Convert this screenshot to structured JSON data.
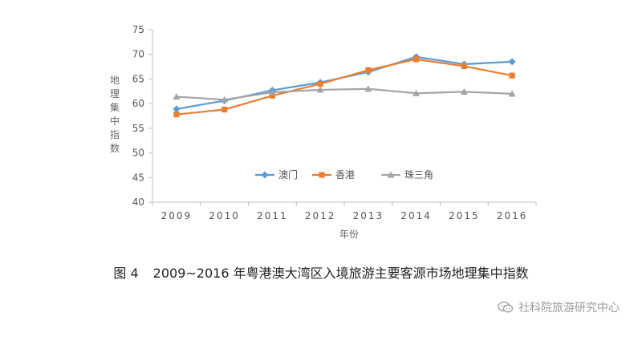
{
  "chart_data": {
    "type": "line",
    "title": "",
    "xlabel": "年份",
    "ylabel": "地理集中指数",
    "categories": [
      "2009",
      "2010",
      "2011",
      "2012",
      "2013",
      "2014",
      "2015",
      "2016"
    ],
    "ylim": [
      40,
      75
    ],
    "yticks": [
      40,
      45,
      50,
      55,
      60,
      65,
      70,
      75
    ],
    "grid": false,
    "legend": "center",
    "series": [
      {
        "name": "澳门",
        "color": "#5b9bd5",
        "marker": "diamond",
        "values": [
          58.9,
          60.6,
          62.7,
          64.3,
          66.4,
          69.5,
          68.0,
          68.5
        ]
      },
      {
        "name": "香港",
        "color": "#ed7d31",
        "marker": "square",
        "values": [
          57.8,
          58.8,
          61.6,
          64.0,
          66.8,
          69.0,
          67.6,
          65.7
        ]
      },
      {
        "name": "珠三角",
        "color": "#a5a5a5",
        "marker": "triangle",
        "values": [
          61.4,
          60.8,
          62.3,
          62.8,
          63.0,
          62.1,
          62.4,
          62.0
        ]
      }
    ]
  },
  "caption": {
    "figure_label": "图 4",
    "text": "2009~2016 年粤港澳大湾区入境旅游主要客源市场地理集中指数"
  },
  "watermark": {
    "text": "社科院旅游研究中心",
    "icon": "wechat-icon",
    "color": "#9a9a9a"
  }
}
